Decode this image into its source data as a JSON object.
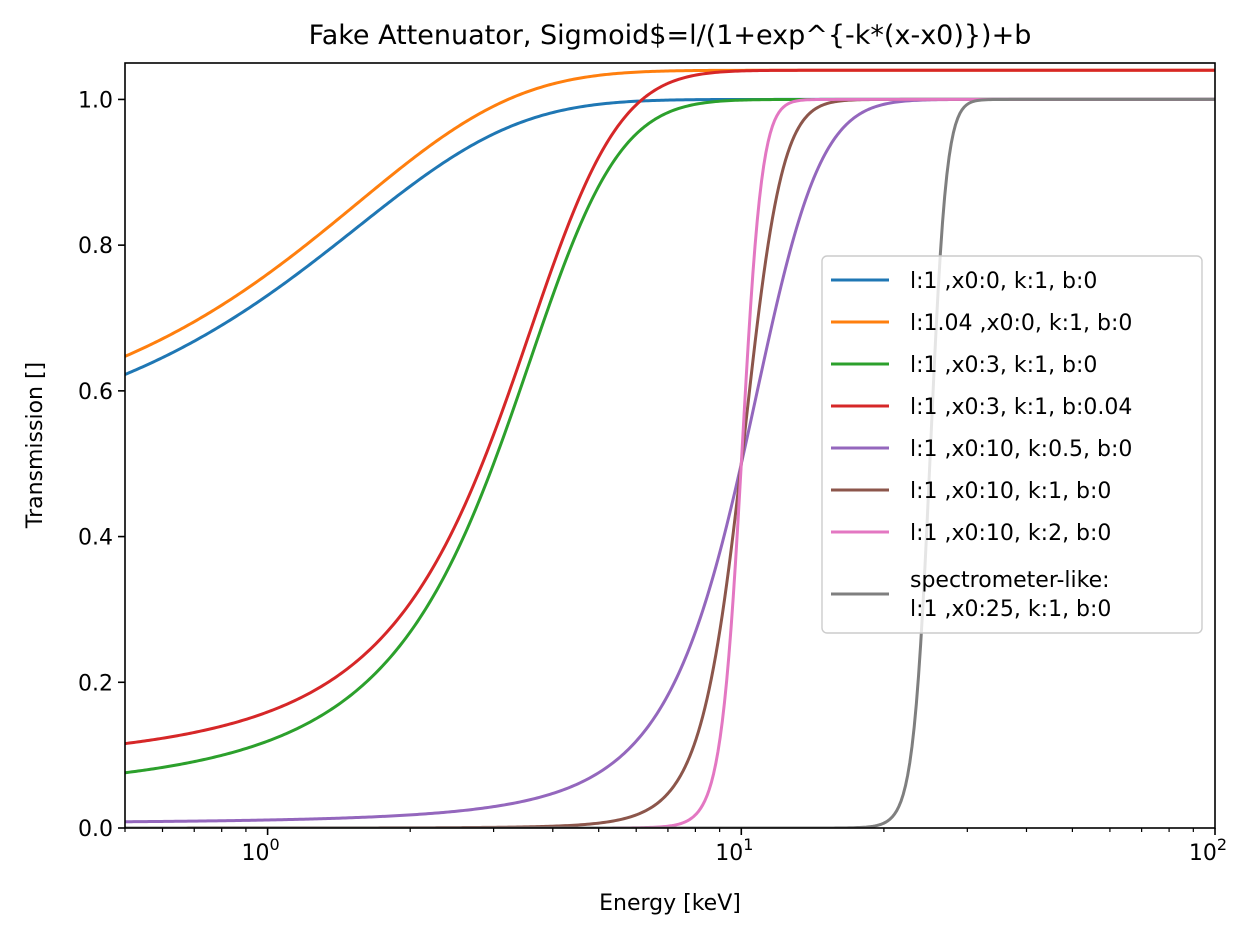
{
  "chart_data": {
    "type": "line",
    "title": "Fake Attenuator, Sigmoid$=l/(1+exp^{-k*(x-x0)})+b",
    "xlabel": "Energy [keV]",
    "ylabel": "Transmission []",
    "xscale": "log",
    "xlim": [
      0.5,
      100
    ],
    "ylim": [
      0,
      1.05
    ],
    "x_ticks": [
      {
        "value": 1,
        "base": "10",
        "exp": "0"
      },
      {
        "value": 10,
        "base": "10",
        "exp": "1"
      },
      {
        "value": 100,
        "base": "10",
        "exp": "2"
      }
    ],
    "y_ticks": [
      "0.0",
      "0.2",
      "0.4",
      "0.6",
      "0.8",
      "1.0"
    ],
    "grid": false,
    "legend_position": "center-right",
    "series": [
      {
        "label": "l:1 ,x0:0, k:1, b:0",
        "color": "#1f77b4",
        "l": 1,
        "x0": 0,
        "k": 1,
        "b": 0
      },
      {
        "label": "l:1.04 ,x0:0, k:1, b:0",
        "color": "#ff7f0e",
        "l": 1.04,
        "x0": 0,
        "k": 1,
        "b": 0
      },
      {
        "label": "l:1 ,x0:3, k:1, b:0",
        "color": "#2ca02c",
        "l": 1,
        "x0": 3,
        "k": 1,
        "b": 0
      },
      {
        "label": "l:1 ,x0:3, k:1, b:0.04",
        "color": "#d62728",
        "l": 1,
        "x0": 3,
        "k": 1,
        "b": 0.04
      },
      {
        "label": "l:1 ,x0:10, k:0.5, b:0",
        "color": "#9467bd",
        "l": 1,
        "x0": 10,
        "k": 0.5,
        "b": 0
      },
      {
        "label": "l:1 ,x0:10, k:1, b:0",
        "color": "#8c564b",
        "l": 1,
        "x0": 10,
        "k": 1,
        "b": 0
      },
      {
        "label": "l:1 ,x0:10, k:2, b:0",
        "color": "#e377c2",
        "l": 1,
        "x0": 10,
        "k": 2,
        "b": 0
      },
      {
        "label_lines": [
          "spectrometer-like:",
          "l:1 ,x0:25, k:1, b:0"
        ],
        "color": "#7f7f7f",
        "l": 1,
        "x0": 25,
        "k": 1,
        "b": 0
      }
    ]
  }
}
